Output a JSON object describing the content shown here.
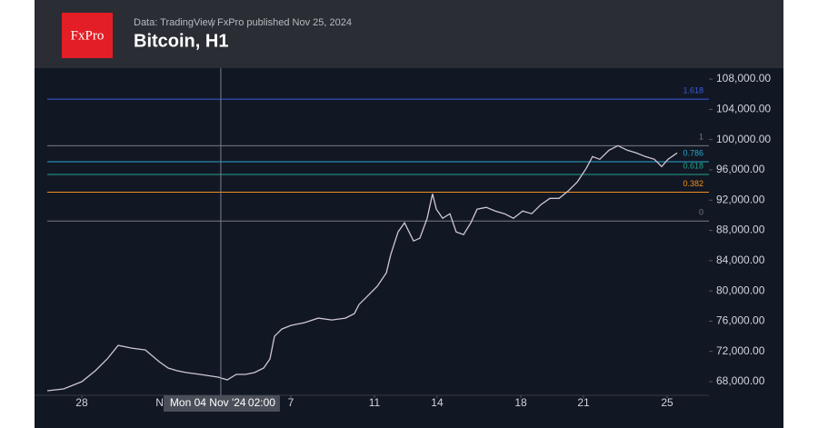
{
  "header": {
    "logo": "FxPro",
    "source": "Data: TradingView",
    "publisher": "FxPro published Nov 25, 2024",
    "title": "Bitcoin, H1"
  },
  "chart_data": {
    "type": "line",
    "name": "Bitcoin, H1",
    "color": "#cfc6d6",
    "x": [
      26.35,
      27.13,
      28.0,
      28.65,
      29.22,
      29.74,
      30.39,
      31.04,
      31.7,
      32.13,
      32.56,
      33.0,
      33.65,
      34.52,
      34.96,
      35.39,
      35.83,
      36.26,
      36.7,
      37.0,
      37.22,
      37.57,
      38.0,
      38.65,
      39.31,
      39.96,
      40.61,
      41.04,
      41.26,
      41.7,
      42.13,
      42.57,
      42.78,
      43.13,
      43.44,
      43.87,
      44.17,
      44.52,
      44.78,
      44.96,
      45.26,
      45.61,
      45.91,
      46.26,
      46.61,
      46.91,
      47.35,
      47.78,
      48.22,
      48.65,
      49.09,
      49.52,
      49.96,
      50.39,
      50.83,
      51.26,
      51.7,
      52.13,
      52.43,
      52.78,
      53.22,
      53.65,
      54.09,
      54.52,
      54.96,
      55.39,
      55.74,
      56.04,
      56.48
    ],
    "values": [
      66800,
      67040,
      68000,
      69440,
      71000,
      72800,
      72440,
      72200,
      70640,
      69800,
      69440,
      69200,
      68960,
      68600,
      68240,
      68960,
      68960,
      69200,
      69800,
      71000,
      74000,
      74960,
      75440,
      75800,
      76400,
      76160,
      76400,
      77000,
      78200,
      79400,
      80600,
      82400,
      84800,
      87800,
      89000,
      86600,
      86960,
      89600,
      92840,
      90800,
      89600,
      90200,
      87800,
      87440,
      89000,
      90800,
      91040,
      90560,
      90200,
      89600,
      90560,
      90200,
      91400,
      92240,
      92240,
      93200,
      94400,
      96200,
      97760,
      97400,
      98600,
      99200,
      98600,
      98240,
      97760,
      97400,
      96440,
      97400,
      98240
    ],
    "xlim": [
      25.74,
      58.0
    ],
    "xticks": [
      28,
      {
        "value": 32,
        "label": "Nov"
      },
      {
        "value": 38,
        "label": "7"
      },
      {
        "value": 42,
        "label": "11"
      },
      {
        "value": 45,
        "label": "14"
      },
      {
        "value": 49,
        "label": "18"
      },
      {
        "value": 52,
        "label": "21"
      },
      {
        "value": 56,
        "label": "25"
      }
    ],
    "ylim": [
      66200,
      109450
    ],
    "yticks": [
      {
        "value": 68000,
        "label": "68,000.00"
      },
      {
        "value": 72000,
        "label": "72,000.00"
      },
      {
        "value": 76000,
        "label": "76,000.00"
      },
      {
        "value": 80000,
        "label": "80,000.00"
      },
      {
        "value": 84000,
        "label": "84,000.00"
      },
      {
        "value": 88000,
        "label": "88,000.00"
      },
      {
        "value": 92000,
        "label": "92,000.00"
      },
      {
        "value": 96000,
        "label": "96,000.00"
      },
      {
        "value": 100000,
        "label": "100,000.00"
      },
      {
        "value": 104000,
        "label": "104,000.00"
      },
      {
        "value": 108000,
        "label": "108,000.00"
      }
    ],
    "fib_levels": [
      {
        "label": "1.618",
        "price": 105355,
        "color": "#3b5bdb"
      },
      {
        "label": "1",
        "price": 99200,
        "color": "#787b86"
      },
      {
        "label": "0.786",
        "price": 97069,
        "color": "#2aa7c9"
      },
      {
        "label": "0.618",
        "price": 95395,
        "color": "#20a58c"
      },
      {
        "label": "0.382",
        "price": 93045,
        "color": "#f0901e"
      },
      {
        "label": "0",
        "price": 89240,
        "color": "#787b86"
      }
    ],
    "crosshair": {
      "x": 34.65,
      "date": "Mon 04 Nov '24",
      "time": "02:00"
    }
  }
}
